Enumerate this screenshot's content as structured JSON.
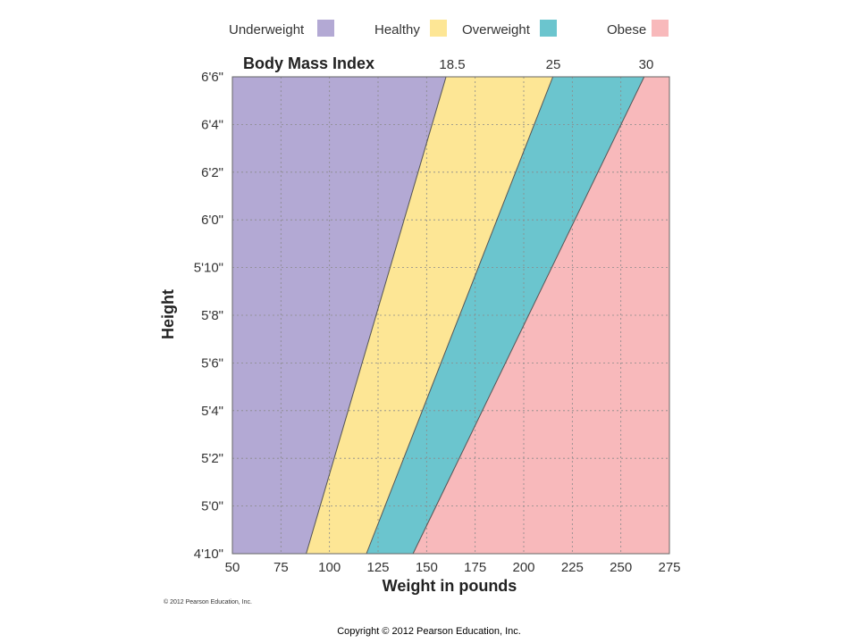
{
  "chart_data": {
    "type": "area",
    "title": "Body Mass Index",
    "xlabel": "Weight in pounds",
    "ylabel": "Height",
    "xlim": [
      50,
      275
    ],
    "x_ticks": [
      "50",
      "75",
      "100",
      "125",
      "150",
      "175",
      "200",
      "225",
      "250",
      "275"
    ],
    "x_tick_values": [
      50,
      75,
      100,
      125,
      150,
      175,
      200,
      225,
      250,
      275
    ],
    "ylim_inches": [
      58,
      78
    ],
    "y_ticks": [
      "4'10\"",
      "5'0\"",
      "5'2\"",
      "5'4\"",
      "5'6\"",
      "5'8\"",
      "5'10\"",
      "6'0\"",
      "6'2\"",
      "6'4\"",
      "6'6\""
    ],
    "y_tick_values_inches": [
      58,
      60,
      62,
      64,
      66,
      68,
      70,
      72,
      74,
      76,
      78
    ],
    "grid": true,
    "legend_position": "top",
    "bmi_thresholds": [
      {
        "label": "18.5",
        "value": 18.5,
        "weight_at_4_10": 88,
        "weight_at_6_6": 160
      },
      {
        "label": "25",
        "value": 25,
        "weight_at_4_10": 119,
        "weight_at_6_6": 215
      },
      {
        "label": "30",
        "value": 30,
        "weight_at_4_10": 143,
        "weight_at_6_6": 262
      }
    ],
    "series": [
      {
        "name": "Underweight",
        "color": "#b3a9d4"
      },
      {
        "name": "Healthy",
        "color": "#fde695"
      },
      {
        "name": "Overweight",
        "color": "#6bc5ce"
      },
      {
        "name": "Obese",
        "color": "#f8b9bb"
      }
    ]
  },
  "footer": {
    "small_copyright": "© 2012 Pearson Education, Inc.",
    "copyright": "Copyright © 2012 Pearson Education, Inc."
  }
}
